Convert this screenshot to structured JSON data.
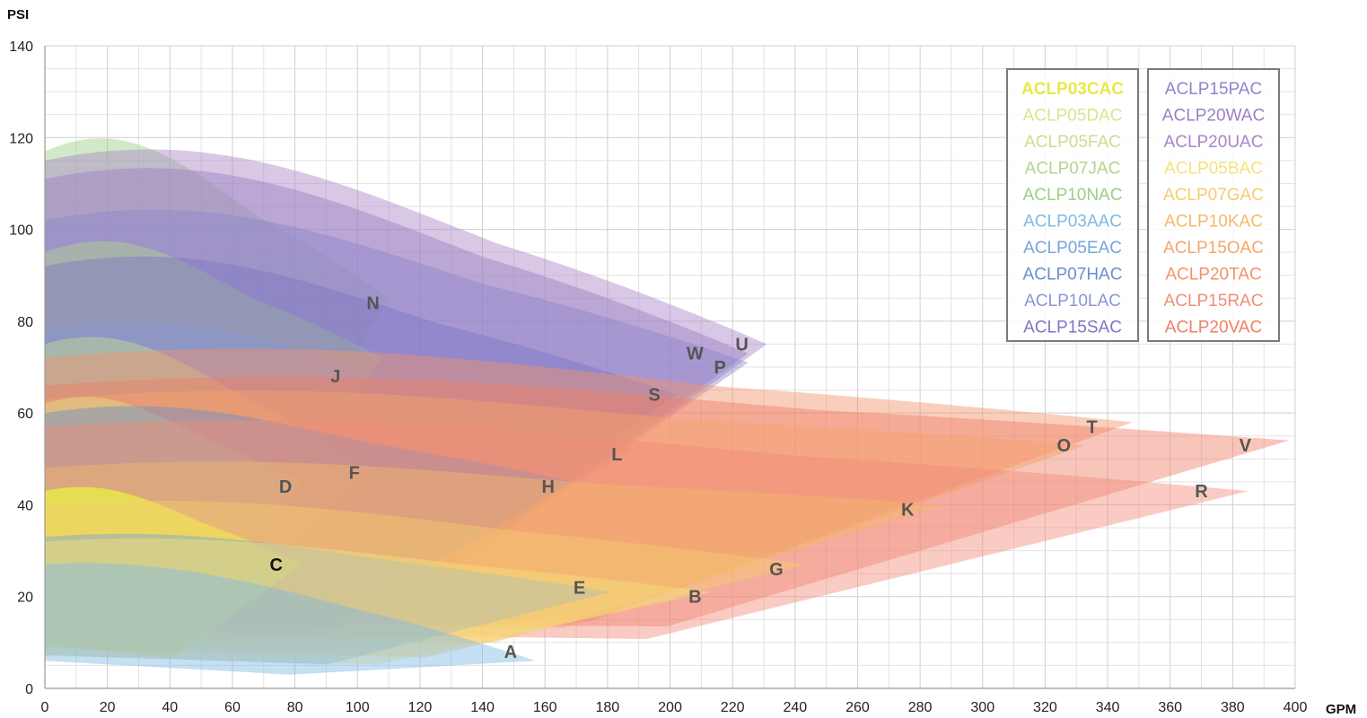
{
  "chart_data": {
    "type": "area",
    "title": "",
    "xlabel": "GPM",
    "ylabel": "PSI",
    "xlim": [
      0,
      400
    ],
    "ylim": [
      0,
      140
    ],
    "x_ticks": [
      0,
      20,
      40,
      60,
      80,
      100,
      120,
      140,
      160,
      180,
      200,
      220,
      240,
      260,
      280,
      300,
      320,
      340,
      360,
      380,
      400
    ],
    "y_ticks": [
      0,
      20,
      40,
      60,
      80,
      100,
      120,
      140
    ],
    "grid": true,
    "legend_position": "top-right",
    "legend": {
      "left_column": [
        {
          "name": "ACLP03CAC",
          "color": "#e8e84a",
          "bold": true
        },
        {
          "name": "ACLP05DAC",
          "color": "#dbe38e",
          "bold": false
        },
        {
          "name": "ACLP05FAC",
          "color": "#c9de8f",
          "bold": false
        },
        {
          "name": "ACLP07JAC",
          "color": "#b2d68a",
          "bold": false
        },
        {
          "name": "ACLP10NAC",
          "color": "#9ccf86",
          "bold": false
        },
        {
          "name": "ACLP03AAC",
          "color": "#7eb9e4",
          "bold": false
        },
        {
          "name": "ACLP05EAC",
          "color": "#75a5da",
          "bold": false
        },
        {
          "name": "ACLP07HAC",
          "color": "#6b8fcc",
          "bold": false
        },
        {
          "name": "ACLP10LAC",
          "color": "#8a95d4",
          "bold": false
        },
        {
          "name": "ACLP15SAC",
          "color": "#7d76c4",
          "bold": false
        }
      ],
      "right_column": [
        {
          "name": "ACLP15PAC",
          "color": "#8f85cc",
          "bold": false
        },
        {
          "name": "ACLP20WAC",
          "color": "#9a7ec4",
          "bold": false
        },
        {
          "name": "ACLP20UAC",
          "color": "#a985c6",
          "bold": false
        },
        {
          "name": "ACLP05BAC",
          "color": "#f6e27c",
          "bold": false
        },
        {
          "name": "ACLP07GAC",
          "color": "#f6cc6e",
          "bold": false
        },
        {
          "name": "ACLP10KAC",
          "color": "#f5b968",
          "bold": false
        },
        {
          "name": "ACLP15OAC",
          "color": "#f4a56a",
          "bold": false
        },
        {
          "name": "ACLP20TAC",
          "color": "#f3936a",
          "bold": false
        },
        {
          "name": "ACLP15RAC",
          "color": "#f18c7a",
          "bold": false
        },
        {
          "name": "ACLP20VAC",
          "color": "#ef7f66",
          "bold": false
        }
      ]
    },
    "series": [
      {
        "label": "A",
        "color": "#7eb9e4",
        "y0": 27,
        "ymax_flow": 100,
        "end": [
          157,
          6
        ],
        "label_pos": [
          149,
          8
        ]
      },
      {
        "label": "B",
        "color": "#f6e27c",
        "y0": 32,
        "ymax_flow": 110,
        "end": [
          213,
          21
        ],
        "label_pos": [
          208,
          20
        ]
      },
      {
        "label": "C",
        "color": "#e8e84a",
        "y0": 43,
        "ymax_flow": 62,
        "end": [
          82,
          27
        ],
        "label_pos": [
          74,
          27
        ],
        "highlight": true
      },
      {
        "label": "D",
        "color": "#dbe38e",
        "y0": 62,
        "ymax_flow": 50,
        "end": [
          82,
          45
        ],
        "label_pos": [
          77,
          44
        ]
      },
      {
        "label": "E",
        "color": "#75a5da",
        "y0": 33,
        "ymax_flow": 110,
        "end": [
          181,
          21
        ],
        "label_pos": [
          171,
          22
        ]
      },
      {
        "label": "F",
        "color": "#c9de8f",
        "y0": 75,
        "ymax_flow": 60,
        "end": [
          104,
          48
        ],
        "label_pos": [
          99,
          47
        ]
      },
      {
        "label": "G",
        "color": "#f6cc6e",
        "y0": 40,
        "ymax_flow": 130,
        "end": [
          244,
          27
        ],
        "label_pos": [
          234,
          26
        ]
      },
      {
        "label": "H",
        "color": "#6b8fcc",
        "y0": 60,
        "ymax_flow": 100,
        "end": [
          169,
          45
        ],
        "label_pos": [
          161,
          44
        ]
      },
      {
        "label": "J",
        "color": "#b2d68a",
        "y0": 95,
        "ymax_flow": 70,
        "end": [
          108,
          72
        ],
        "label_pos": [
          93,
          68
        ]
      },
      {
        "label": "K",
        "color": "#f5b968",
        "y0": 48,
        "ymax_flow": 180,
        "end": [
          288,
          40
        ],
        "label_pos": [
          276,
          39
        ]
      },
      {
        "label": "L",
        "color": "#8a95d4",
        "y0": 78,
        "ymax_flow": 110,
        "end": [
          188,
          52
        ],
        "label_pos": [
          183,
          51
        ]
      },
      {
        "label": "N",
        "color": "#9ccf86",
        "y0": 117,
        "ymax_flow": 90,
        "end": [
          110,
          85
        ],
        "label_pos": [
          105,
          84
        ]
      },
      {
        "label": "O",
        "color": "#f4a56a",
        "y0": 63,
        "ymax_flow": 200,
        "end": [
          333,
          53
        ],
        "label_pos": [
          326,
          53
        ]
      },
      {
        "label": "P",
        "color": "#8f85cc",
        "y0": 102,
        "ymax_flow": 130,
        "end": [
          225,
          71
        ],
        "label_pos": [
          216,
          70
        ]
      },
      {
        "label": "R",
        "color": "#f18c7a",
        "y0": 57,
        "ymax_flow": 230,
        "end": [
          385,
          43
        ],
        "label_pos": [
          370,
          43
        ]
      },
      {
        "label": "S",
        "color": "#7d76c4",
        "y0": 92,
        "ymax_flow": 130,
        "end": [
          202,
          64
        ],
        "label_pos": [
          195,
          64
        ]
      },
      {
        "label": "T",
        "color": "#f3936a",
        "y0": 72,
        "ymax_flow": 220,
        "end": [
          348,
          58
        ],
        "label_pos": [
          335,
          57
        ]
      },
      {
        "label": "U",
        "color": "#a985c6",
        "y0": 115,
        "ymax_flow": 150,
        "end": [
          231,
          75
        ],
        "label_pos": [
          223,
          75
        ]
      },
      {
        "label": "V",
        "color": "#ef7f66",
        "y0": 66,
        "ymax_flow": 250,
        "end": [
          398,
          54
        ],
        "label_pos": [
          384,
          53
        ]
      },
      {
        "label": "W",
        "color": "#9a7ec4",
        "y0": 111,
        "ymax_flow": 140,
        "end": [
          225,
          73
        ],
        "label_pos": [
          208,
          73
        ]
      }
    ]
  }
}
